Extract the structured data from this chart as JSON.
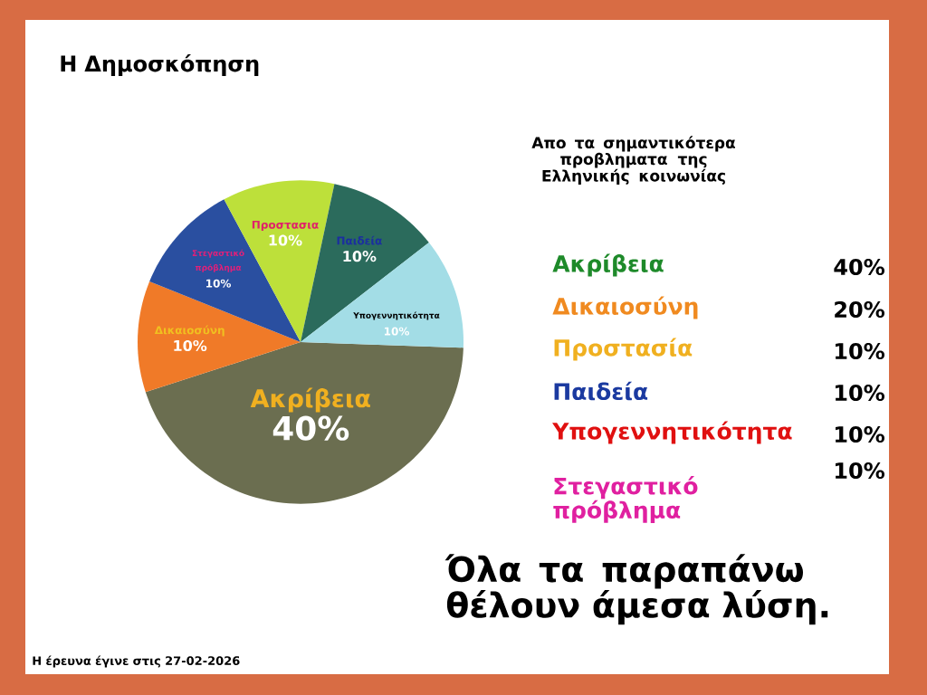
{
  "chart_data": {
    "type": "pie",
    "title": "Η Δημοσκόπηση",
    "subtitle": "Απο τα σημαντικότερα προβληματα της Ελληνικής κοινωνίας",
    "categories": [
      "Ακρίβεια",
      "Δικαιοσύνη",
      "Στεγαστικό πρόβλημα",
      "Προστασια",
      "Παιδεία",
      "Υπογεννητικότητα"
    ],
    "values": [
      40,
      10,
      10,
      10,
      10,
      10
    ],
    "value_labels": [
      "40%",
      "10%",
      "10%",
      "10%",
      "10%",
      "10%"
    ],
    "colors": [
      "#6b6e50",
      "#f07a28",
      "#2a4fa0",
      "#bde03a",
      "#2b6b5c",
      "#a3dde6"
    ],
    "annotations": [
      "Ακρίβεια",
      "40%",
      "Δικαιοσύνη",
      "20%",
      "Προστασία",
      "10%",
      "Παιδεία",
      "10%",
      "Υπογεννητικότητα",
      "10%",
      "Στεγαστικό πρόβλημα",
      "10%",
      "Όλα τα παραπάνω θέλουν άμεσα λύση.",
      "Η έρευνα έγινε στις 27-02-2026"
    ]
  }
}
